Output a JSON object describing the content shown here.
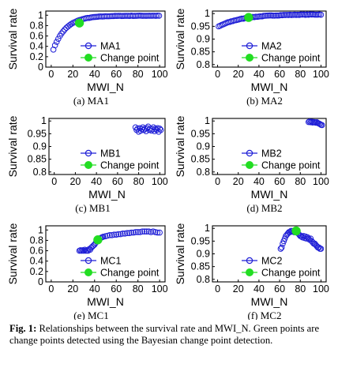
{
  "caption": {
    "label": "Fig. 1:",
    "text": "Relationships between the survival rate and MWI_N. Green points are change points detected using the Bayesian change point detection."
  },
  "colors": {
    "series": "#1f1fd6",
    "change_point": "#22dd22"
  },
  "chart_data": [
    {
      "id": "MA1",
      "type": "scatter",
      "caption": "(a) MA1",
      "xlabel": "MWI_N",
      "ylabel": "Survival rate",
      "xlim": [
        -5,
        105
      ],
      "ylim": [
        0,
        1.08
      ],
      "xticks": [
        0,
        20,
        40,
        60,
        80,
        100
      ],
      "yticks": [
        0,
        0.2,
        0.4,
        0.6,
        0.8,
        1
      ],
      "ytick_labels": [
        "0",
        "0.2",
        "0.4",
        "0.6",
        "0.8",
        "1"
      ],
      "curve": {
        "kind": "sat",
        "x0": 2,
        "x1": 100,
        "step": 1.5,
        "a": 0.99,
        "b": 0.77,
        "c": 0.085,
        "noise": 0.006
      },
      "change_point": {
        "x": 26,
        "y": 0.85
      },
      "legend": {
        "series": "MA1",
        "change": "Change point"
      }
    },
    {
      "id": "MA2",
      "type": "scatter",
      "caption": "(b) MA2",
      "xlabel": "MWI_N",
      "ylabel": "Survival rate",
      "xlim": [
        -5,
        105
      ],
      "ylim": [
        0.79,
        1.01
      ],
      "xticks": [
        0,
        20,
        40,
        60,
        80,
        100
      ],
      "yticks": [
        0.8,
        0.85,
        0.9,
        0.95,
        1
      ],
      "ytick_labels": [
        "0.8",
        "0.85",
        "0.9",
        "0.95",
        "1"
      ],
      "curve": {
        "kind": "sat",
        "x0": 1,
        "x1": 100,
        "step": 1.5,
        "a": 0.997,
        "b": 0.05,
        "c": 0.045,
        "noise": 0.002
      },
      "change_point": {
        "x": 30,
        "y": 0.985
      },
      "legend": {
        "series": "MA2",
        "change": "Change point"
      }
    },
    {
      "id": "MB1",
      "type": "scatter",
      "caption": "(c) MB1",
      "xlabel": "MWI_N",
      "ylabel": "Survival rate",
      "xlim": [
        -5,
        105
      ],
      "ylim": [
        0.79,
        1.01
      ],
      "xticks": [
        0,
        20,
        40,
        60,
        80,
        100
      ],
      "yticks": [
        0.8,
        0.85,
        0.9,
        0.95,
        1
      ],
      "ytick_labels": [
        "0.8",
        "0.85",
        "0.9",
        "0.95",
        "1"
      ],
      "points": [
        [
          77,
          0.975
        ],
        [
          78,
          0.965
        ],
        [
          79,
          0.97
        ],
        [
          80,
          0.958
        ],
        [
          81,
          0.972
        ],
        [
          82,
          0.962
        ],
        [
          83,
          0.968
        ],
        [
          84,
          0.975
        ],
        [
          85,
          0.965
        ],
        [
          86,
          0.97
        ],
        [
          87,
          0.96
        ],
        [
          88,
          0.972
        ],
        [
          89,
          0.978
        ],
        [
          90,
          0.965
        ],
        [
          91,
          0.97
        ],
        [
          92,
          0.962
        ],
        [
          93,
          0.968
        ],
        [
          94,
          0.975
        ],
        [
          95,
          0.96
        ],
        [
          96,
          0.97
        ],
        [
          97,
          0.965
        ],
        [
          98,
          0.972
        ],
        [
          99,
          0.958
        ],
        [
          100,
          0.97
        ],
        [
          101,
          0.965
        ]
      ],
      "change_point": null,
      "legend": {
        "series": "MB1",
        "change": "Change point"
      }
    },
    {
      "id": "MB2",
      "type": "scatter",
      "caption": "(d) MB2",
      "xlabel": "MWI_N",
      "ylabel": "Survival rate",
      "xlim": [
        -5,
        105
      ],
      "ylim": [
        0.79,
        1.01
      ],
      "xticks": [
        0,
        20,
        40,
        60,
        80,
        100
      ],
      "yticks": [
        0.8,
        0.85,
        0.9,
        0.95,
        1
      ],
      "ytick_labels": [
        "0.8",
        "0.85",
        "0.9",
        "0.95",
        "1"
      ],
      "points": [
        [
          88,
          0.996
        ],
        [
          89,
          0.998
        ],
        [
          90,
          0.995
        ],
        [
          91,
          0.997
        ],
        [
          92,
          0.994
        ],
        [
          93,
          0.996
        ],
        [
          94,
          0.995
        ],
        [
          95,
          0.993
        ],
        [
          96,
          0.995
        ],
        [
          97,
          0.992
        ],
        [
          98,
          0.99
        ],
        [
          99,
          0.988
        ],
        [
          100,
          0.985
        ],
        [
          101,
          0.984
        ]
      ],
      "change_point": null,
      "legend": {
        "series": "MB2",
        "change": "Change point"
      }
    },
    {
      "id": "MC1",
      "type": "scatter",
      "caption": "(e) MC1",
      "xlabel": "MWI_N",
      "ylabel": "Survival rate",
      "xlim": [
        -5,
        105
      ],
      "ylim": [
        0,
        1.08
      ],
      "xticks": [
        0,
        20,
        40,
        60,
        80,
        100
      ],
      "yticks": [
        0,
        0.2,
        0.4,
        0.6,
        0.8,
        1
      ],
      "ytick_labels": [
        "0",
        "0.2",
        "0.4",
        "0.6",
        "0.8",
        "1"
      ],
      "points": [
        [
          26,
          0.6
        ],
        [
          27,
          0.61
        ],
        [
          28,
          0.6
        ],
        [
          29,
          0.61
        ],
        [
          30,
          0.6
        ],
        [
          31,
          0.62
        ],
        [
          32,
          0.6
        ],
        [
          33,
          0.61
        ],
        [
          34,
          0.6
        ],
        [
          35,
          0.63
        ],
        [
          36,
          0.62
        ],
        [
          37,
          0.66
        ],
        [
          38,
          0.68
        ],
        [
          39,
          0.7
        ],
        [
          40,
          0.72
        ],
        [
          41,
          0.75
        ],
        [
          42,
          0.78
        ],
        [
          43,
          0.8
        ],
        [
          44,
          0.82
        ],
        [
          45,
          0.84
        ],
        [
          46,
          0.85
        ],
        [
          47,
          0.86
        ],
        [
          48,
          0.87
        ],
        [
          50,
          0.88
        ],
        [
          52,
          0.89
        ],
        [
          54,
          0.9
        ],
        [
          56,
          0.9
        ],
        [
          58,
          0.91
        ],
        [
          60,
          0.91
        ],
        [
          62,
          0.92
        ],
        [
          64,
          0.92
        ],
        [
          66,
          0.93
        ],
        [
          68,
          0.93
        ],
        [
          70,
          0.94
        ],
        [
          72,
          0.94
        ],
        [
          74,
          0.95
        ],
        [
          76,
          0.95
        ],
        [
          78,
          0.96
        ],
        [
          80,
          0.96
        ],
        [
          82,
          0.96
        ],
        [
          84,
          0.97
        ],
        [
          86,
          0.97
        ],
        [
          88,
          0.97
        ],
        [
          90,
          0.97
        ],
        [
          92,
          0.96
        ],
        [
          94,
          0.97
        ],
        [
          96,
          0.96
        ],
        [
          98,
          0.95
        ],
        [
          100,
          0.95
        ]
      ],
      "change_point": {
        "x": 43,
        "y": 0.81
      },
      "legend": {
        "series": "MC1",
        "change": "Change point"
      }
    },
    {
      "id": "MC2",
      "type": "scatter",
      "caption": "(f) MC2",
      "xlabel": "MWI_N",
      "ylabel": "Survival rate",
      "xlim": [
        -5,
        105
      ],
      "ylim": [
        0.79,
        1.01
      ],
      "xticks": [
        0,
        20,
        40,
        60,
        80,
        100
      ],
      "yticks": [
        0.8,
        0.85,
        0.9,
        0.95,
        1
      ],
      "ytick_labels": [
        "0.8",
        "0.85",
        "0.9",
        "0.95",
        "1"
      ],
      "points": [
        [
          61,
          0.92
        ],
        [
          62,
          0.925
        ],
        [
          63,
          0.94
        ],
        [
          64,
          0.95
        ],
        [
          65,
          0.96
        ],
        [
          66,
          0.97
        ],
        [
          67,
          0.975
        ],
        [
          68,
          0.98
        ],
        [
          69,
          0.985
        ],
        [
          70,
          0.985
        ],
        [
          71,
          0.99
        ],
        [
          72,
          0.988
        ],
        [
          73,
          0.99
        ],
        [
          74,
          0.985
        ],
        [
          75,
          0.99
        ],
        [
          77,
          0.985
        ],
        [
          78,
          0.98
        ],
        [
          79,
          0.975
        ],
        [
          80,
          0.97
        ],
        [
          81,
          0.97
        ],
        [
          82,
          0.965
        ],
        [
          83,
          0.97
        ],
        [
          84,
          0.962
        ],
        [
          85,
          0.968
        ],
        [
          86,
          0.96
        ],
        [
          87,
          0.965
        ],
        [
          88,
          0.96
        ],
        [
          89,
          0.955
        ],
        [
          90,
          0.96
        ],
        [
          91,
          0.95
        ],
        [
          92,
          0.945
        ],
        [
          93,
          0.94
        ],
        [
          94,
          0.94
        ],
        [
          95,
          0.935
        ],
        [
          96,
          0.93
        ],
        [
          97,
          0.925
        ],
        [
          98,
          0.925
        ],
        [
          99,
          0.92
        ],
        [
          100,
          0.92
        ]
      ],
      "change_point": {
        "x": 76,
        "y": 0.99
      },
      "legend": {
        "series": "MC2",
        "change": "Change point"
      }
    }
  ]
}
